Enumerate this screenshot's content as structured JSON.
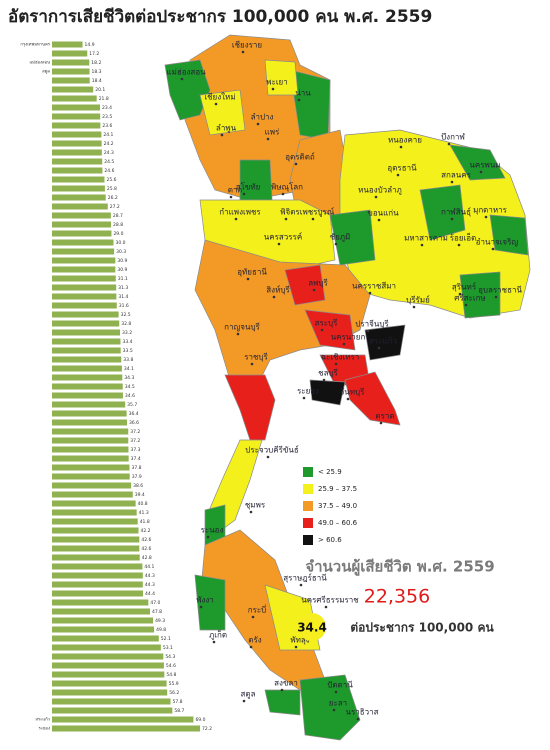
{
  "header": {
    "title": "อัตราการเสียชีวิตต่อประชากร 100,000 คน พ.ศ. 2559"
  },
  "chart_data": {
    "type": "bar",
    "orientation": "horizontal",
    "color": "#8fb14f",
    "xlim": [
      0,
      80
    ],
    "categories": [
      "กรุงเทพมหานคร",
      null,
      "แม่ฮ่องสอน",
      "สตูล",
      null,
      null,
      null,
      null,
      null,
      null,
      null,
      null,
      null,
      null,
      null,
      null,
      null,
      null,
      null,
      null,
      null,
      null,
      null,
      null,
      null,
      null,
      null,
      null,
      null,
      null,
      null,
      null,
      null,
      null,
      null,
      null,
      null,
      null,
      null,
      null,
      null,
      null,
      null,
      null,
      null,
      null,
      null,
      null,
      null,
      null,
      null,
      null,
      null,
      null,
      null,
      null,
      null,
      null,
      null,
      null,
      null,
      null,
      null,
      null,
      null,
      null,
      null,
      null,
      null,
      null,
      null,
      null,
      null,
      null,
      null,
      "สระแก้ว",
      "ระยอง"
    ],
    "values": [
      14.9,
      17.2,
      18.2,
      18.3,
      18.4,
      20.1,
      21.8,
      23.4,
      23.5,
      23.6,
      24.1,
      24.2,
      24.3,
      24.5,
      24.6,
      25.6,
      25.8,
      26.2,
      27.2,
      28.7,
      28.8,
      29.0,
      30.0,
      30.3,
      30.9,
      30.9,
      31.1,
      31.3,
      31.4,
      31.6,
      32.5,
      32.8,
      33.2,
      33.4,
      33.5,
      33.8,
      34.1,
      34.3,
      34.5,
      34.6,
      35.7,
      36.4,
      36.6,
      37.2,
      37.2,
      37.3,
      37.4,
      37.8,
      37.9,
      38.6,
      39.4,
      40.8,
      41.3,
      41.8,
      42.2,
      42.6,
      42.6,
      42.8,
      44.1,
      44.3,
      44.3,
      44.4,
      47.0,
      47.8,
      49.3,
      49.8,
      52.1,
      53.1,
      54.3,
      54.6,
      54.8,
      55.9,
      56.2,
      57.8,
      58.7,
      69.0,
      72.2
    ],
    "value_labels": [
      "14.9",
      "17.2",
      "18.2",
      "18.3",
      "18.4",
      "20.1",
      "21.8",
      "23.4",
      "23.5",
      "23.6",
      "24.1",
      "24.2",
      "24.3",
      "24.5",
      "24.6",
      "25.6",
      "25.8",
      "26.2",
      "27.2",
      "28.7",
      "28.8",
      "29.0",
      "30.0",
      "30.3",
      "30.9",
      "30.9",
      "31.1",
      "31.3",
      "31.4",
      "31.6",
      "32.5",
      "32.8",
      "33.2",
      "33.4",
      "33.5",
      "33.8",
      "34.1",
      "34.3",
      "34.5",
      "34.6",
      "35.7",
      "36.4",
      "36.6",
      "37.2",
      "37.2",
      "37.3",
      "37.4",
      "37.8",
      "37.9",
      "38.6",
      "39.4",
      "40.8",
      "41.3",
      "41.8",
      "42.2",
      "42.6",
      "42.6",
      "42.8",
      "44.1",
      "44.3",
      "44.3",
      "44.4",
      "47.0",
      "47.8",
      "49.3",
      "49.8",
      "52.1",
      "53.1",
      "54.3",
      "54.6",
      "54.8",
      "55.9",
      "56.2",
      "57.8",
      "58.7",
      "69.0",
      "72.2"
    ]
  },
  "legend": {
    "items": [
      {
        "label": "< 25.9",
        "color": "#1e9a2c"
      },
      {
        "label": "25.9 – 37.5",
        "color": "#f4f01c"
      },
      {
        "label": "37.5 – 49.0",
        "color": "#f39a26"
      },
      {
        "label": "49.0 – 60.6",
        "color": "#e8201c"
      },
      {
        "label": "> 60.6",
        "color": "#111111"
      }
    ]
  },
  "summary": {
    "heading": "จำนวนผู้เสียชีวิต พ.ศ. 2559",
    "deaths": "22,356",
    "rate": "34.4",
    "rate_unit": "ต่อประชากร 100,000 คน"
  },
  "map": {
    "labels": [
      "เชียงราย",
      "แม่ฮ่องสอน",
      "พะเยา",
      "น่าน",
      "เชียงใหม่",
      "ลำปาง",
      "ลำพูน",
      "แพร่",
      "อุตรดิตถ์",
      "ตาก",
      "สุโขทัย",
      "พิษณุโลก",
      "กำแพงเพชร",
      "พิจิตร",
      "เพชรบูรณ์",
      "หนองคาย",
      "บึงกาฬ",
      "สกลนคร",
      "นครพนม",
      "อุดรธานี",
      "หนองบัวลำภู",
      "ขอนแก่น",
      "กาฬสินธุ์",
      "มุกดาหาร",
      "ชัยภูมิ",
      "มหาสารคาม",
      "ร้อยเอ็ด",
      "อำนาจเจริญ",
      "นครสวรรค์",
      "อุทัยธานี",
      "ลพบุรี",
      "สิงห์บุรี",
      "นครราชสีมา",
      "บุรีรัมย์",
      "สุรินทร์",
      "ศรีสะเกษ",
      "อุบลราชธานี",
      "กาญจนบุรี",
      "สระบุรี",
      "นครนายก",
      "ปราจีนบุรี",
      "ราชบุรี",
      "สระแก้ว",
      "ฉะเชิงเทรา",
      "ชลบุรี",
      "ระยอง",
      "จันทบุรี",
      "ตราด",
      "ประจวบคีรีขันธ์",
      "ชุมพร",
      "ระนอง",
      "สุราษฎร์ธานี",
      "นครศรีธรรมราช",
      "พังงา",
      "กระบี่",
      "ภูเก็ต",
      "ตรัง",
      "พัทลุง",
      "สงขลา",
      "สตูล",
      "ปัตตานี",
      "ยะลา",
      "นราธิวาส"
    ]
  }
}
